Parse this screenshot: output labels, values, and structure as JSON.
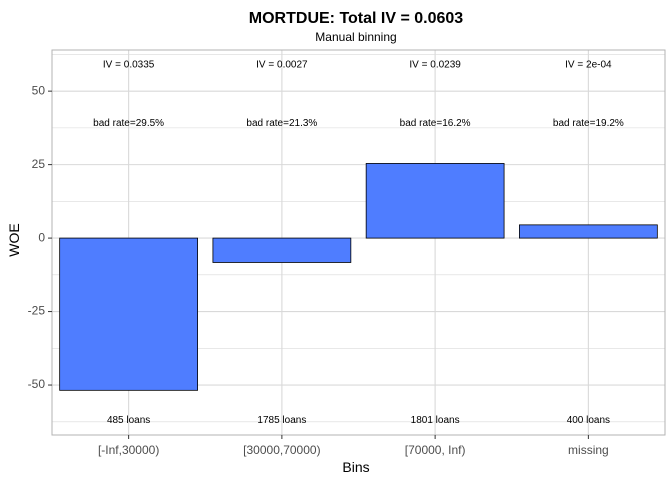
{
  "chart_data": {
    "type": "bar",
    "title": "MORTDUE: Total IV = 0.0603",
    "subtitle": "Manual binning",
    "xlabel": "Bins",
    "ylabel": "WOE",
    "categories": [
      "[-Inf,30000)",
      "[30000,70000)",
      "[70000, Inf)",
      "missing"
    ],
    "values": [
      -51.8,
      -8.3,
      25.4,
      4.5
    ],
    "ylim": [
      -67,
      64
    ],
    "yticks": [
      -50,
      -25,
      0,
      25,
      50
    ],
    "ytick_labels": [
      "-50",
      "-25",
      "0",
      "25",
      "50"
    ],
    "grid": true,
    "iv_labels": [
      "IV = 0.0335",
      "IV = 0.0027",
      "IV = 0.0239",
      "IV = 2e-04"
    ],
    "bad_rate_labels": [
      "bad rate=29.5%",
      "bad rate=21.3%",
      "bad rate=16.2%",
      "bad rate=19.2%"
    ],
    "count_labels": [
      "485 loans",
      "1785 loans",
      "1801 loans",
      "400 loans"
    ],
    "iv_label_y": 59,
    "bad_rate_label_y": 39,
    "count_label_y": -62,
    "colors": {
      "bar_fill": "#4f7dff",
      "bar_stroke": "#000000",
      "grid": "#d9d9d9",
      "panel_border": "#b3b3b3"
    }
  }
}
